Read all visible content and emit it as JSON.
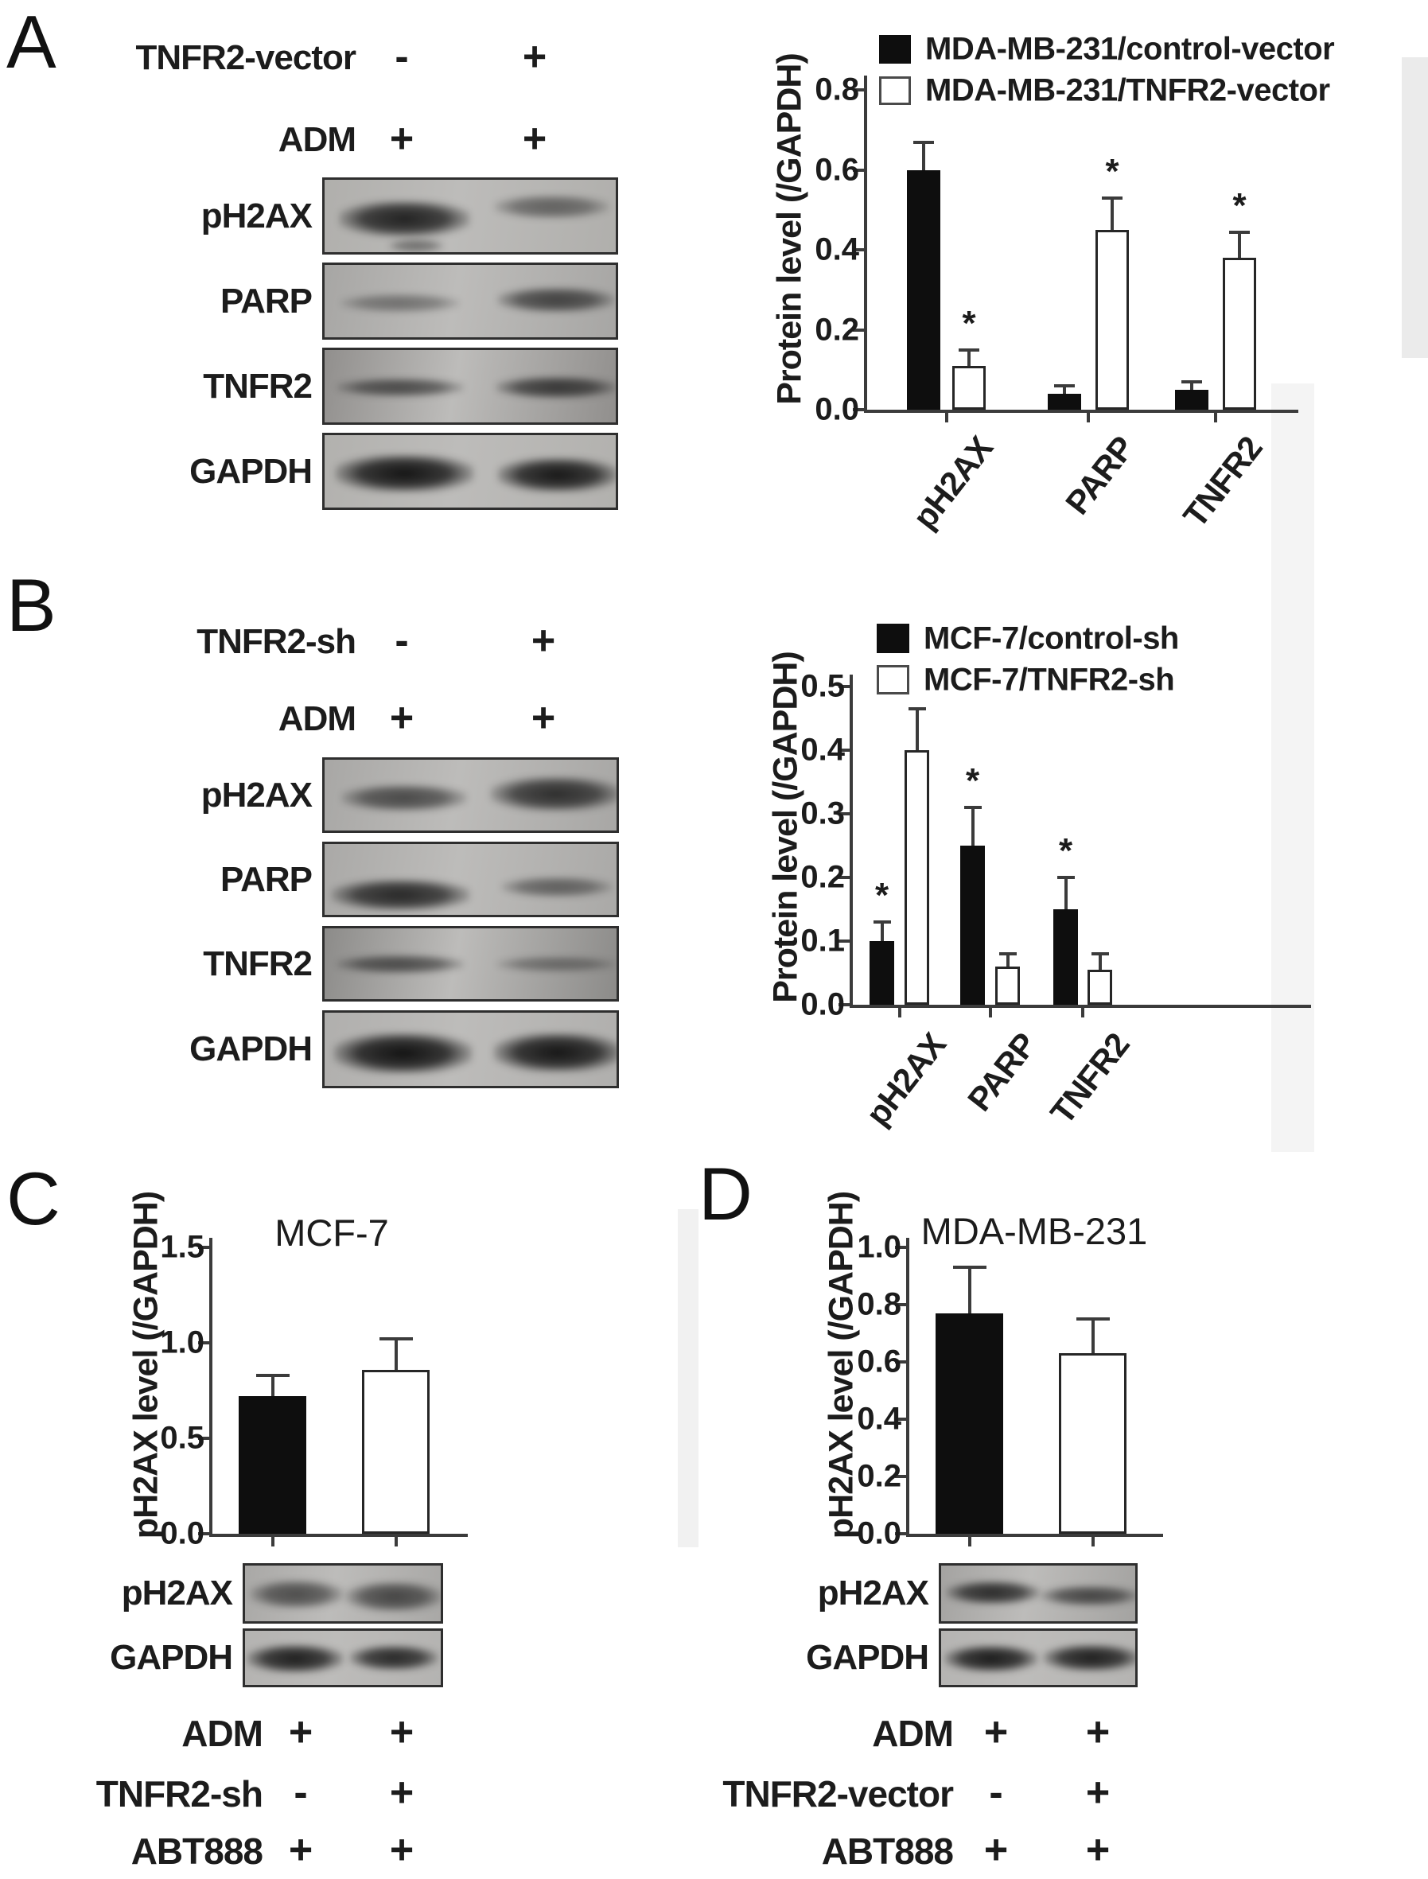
{
  "figure": {
    "panels": [
      {
        "id": "A",
        "letter": "A",
        "conditions": [
          {
            "label": "TNFR2-vector",
            "values": [
              "-",
              "+"
            ]
          },
          {
            "label": "ADM",
            "values": [
              "+",
              "+"
            ]
          }
        ],
        "blots": [
          {
            "label": "pH2AX",
            "band_intensity": [
              0.88,
              0.5
            ]
          },
          {
            "label": "PARP",
            "band_intensity": [
              0.4,
              0.68
            ]
          },
          {
            "label": "TNFR2",
            "band_intensity": [
              0.62,
              0.72
            ]
          },
          {
            "label": "GAPDH",
            "band_intensity": [
              0.96,
              0.94
            ]
          }
        ]
      },
      {
        "id": "B",
        "letter": "B",
        "conditions": [
          {
            "label": "TNFR2-sh",
            "values": [
              "-",
              "+"
            ]
          },
          {
            "label": "ADM",
            "values": [
              "+",
              "+"
            ]
          }
        ],
        "blots": [
          {
            "label": "pH2AX",
            "band_intensity": [
              0.64,
              0.8
            ]
          },
          {
            "label": "PARP",
            "band_intensity": [
              0.84,
              0.5
            ]
          },
          {
            "label": "TNFR2",
            "band_intensity": [
              0.6,
              0.38
            ]
          },
          {
            "label": "GAPDH",
            "band_intensity": [
              0.97,
              0.95
            ]
          }
        ]
      },
      {
        "id": "C",
        "letter": "C",
        "title": "MCF-7",
        "conditions": [
          {
            "label": "ADM",
            "values": [
              "+",
              "+"
            ]
          },
          {
            "label": "TNFR2-sh",
            "values": [
              "-",
              "+"
            ]
          },
          {
            "label": "ABT888",
            "values": [
              "+",
              "+"
            ]
          }
        ],
        "blots": [
          {
            "label": "pH2AX",
            "band_intensity": [
              0.62,
              0.66
            ]
          },
          {
            "label": "GAPDH",
            "band_intensity": [
              0.9,
              0.84
            ]
          }
        ]
      },
      {
        "id": "D",
        "letter": "D",
        "title": "MDA-MB-231",
        "conditions": [
          {
            "label": "ADM",
            "values": [
              "+",
              "+"
            ]
          },
          {
            "label": "TNFR2-vector",
            "values": [
              "-",
              "+"
            ]
          },
          {
            "label": "ABT888",
            "values": [
              "+",
              "+"
            ]
          }
        ],
        "blots": [
          {
            "label": "pH2AX",
            "band_intensity": [
              0.82,
              0.66
            ]
          },
          {
            "label": "GAPDH",
            "band_intensity": [
              0.92,
              0.9
            ]
          }
        ]
      }
    ]
  },
  "chart_data": [
    {
      "id": "A",
      "type": "bar",
      "title": "",
      "xlabel": "",
      "ylabel": "Protein level (/GAPDH)",
      "ylim": [
        0.0,
        0.8
      ],
      "yticks": [
        0.0,
        0.2,
        0.4,
        0.6,
        0.8
      ],
      "grid": false,
      "legend_position": "top",
      "categories": [
        "pH2AX",
        "PARP",
        "TNFR2"
      ],
      "series": [
        {
          "name": "MDA-MB-231/control-vector",
          "fill": "black",
          "values": [
            0.6,
            0.04,
            0.05
          ],
          "errors": [
            0.07,
            0.02,
            0.02
          ],
          "significance": [
            "",
            "",
            ""
          ]
        },
        {
          "name": "MDA-MB-231/TNFR2-vector",
          "fill": "white",
          "values": [
            0.11,
            0.45,
            0.38
          ],
          "errors": [
            0.04,
            0.08,
            0.065
          ],
          "significance": [
            "*",
            "*",
            "*"
          ]
        }
      ]
    },
    {
      "id": "B",
      "type": "bar",
      "title": "",
      "xlabel": "",
      "ylabel": "Protein level (/GAPDH)",
      "ylim": [
        0.0,
        0.5
      ],
      "yticks": [
        0.0,
        0.1,
        0.2,
        0.3,
        0.4,
        0.5
      ],
      "grid": false,
      "legend_position": "top",
      "categories": [
        "pH2AX",
        "PARP",
        "TNFR2"
      ],
      "series": [
        {
          "name": "MCF-7/control-sh",
          "fill": "black",
          "values": [
            0.1,
            0.25,
            0.15
          ],
          "errors": [
            0.03,
            0.06,
            0.05
          ],
          "significance": [
            "*",
            "*",
            "*"
          ]
        },
        {
          "name": "MCF-7/TNFR2-sh",
          "fill": "white",
          "values": [
            0.4,
            0.06,
            0.055
          ],
          "errors": [
            0.065,
            0.02,
            0.025
          ],
          "significance": [
            "",
            "",
            ""
          ]
        }
      ]
    },
    {
      "id": "C",
      "type": "bar",
      "title": "MCF-7",
      "xlabel": "",
      "ylabel": "pH2AX level (/GAPDH)",
      "ylim": [
        0.0,
        1.5
      ],
      "yticks": [
        0.0,
        0.5,
        1.0,
        1.5
      ],
      "grid": false,
      "legend_position": "none",
      "categories": [
        ""
      ],
      "series": [
        {
          "name": "",
          "fill": "black",
          "values": [
            0.72
          ],
          "errors": [
            0.11
          ],
          "significance": [
            ""
          ]
        },
        {
          "name": "",
          "fill": "white",
          "values": [
            0.86
          ],
          "errors": [
            0.16
          ],
          "significance": [
            ""
          ]
        }
      ]
    },
    {
      "id": "D",
      "type": "bar",
      "title": "MDA-MB-231",
      "xlabel": "",
      "ylabel": "pH2AX level (/GAPDH)",
      "ylim": [
        0.0,
        1.0
      ],
      "yticks": [
        0.0,
        0.2,
        0.4,
        0.6,
        0.8,
        1.0
      ],
      "grid": false,
      "legend_position": "none",
      "categories": [
        ""
      ],
      "series": [
        {
          "name": "",
          "fill": "black",
          "values": [
            0.77
          ],
          "errors": [
            0.16
          ],
          "significance": [
            ""
          ]
        },
        {
          "name": "",
          "fill": "white",
          "values": [
            0.63
          ],
          "errors": [
            0.12
          ],
          "significance": [
            ""
          ]
        }
      ]
    }
  ]
}
